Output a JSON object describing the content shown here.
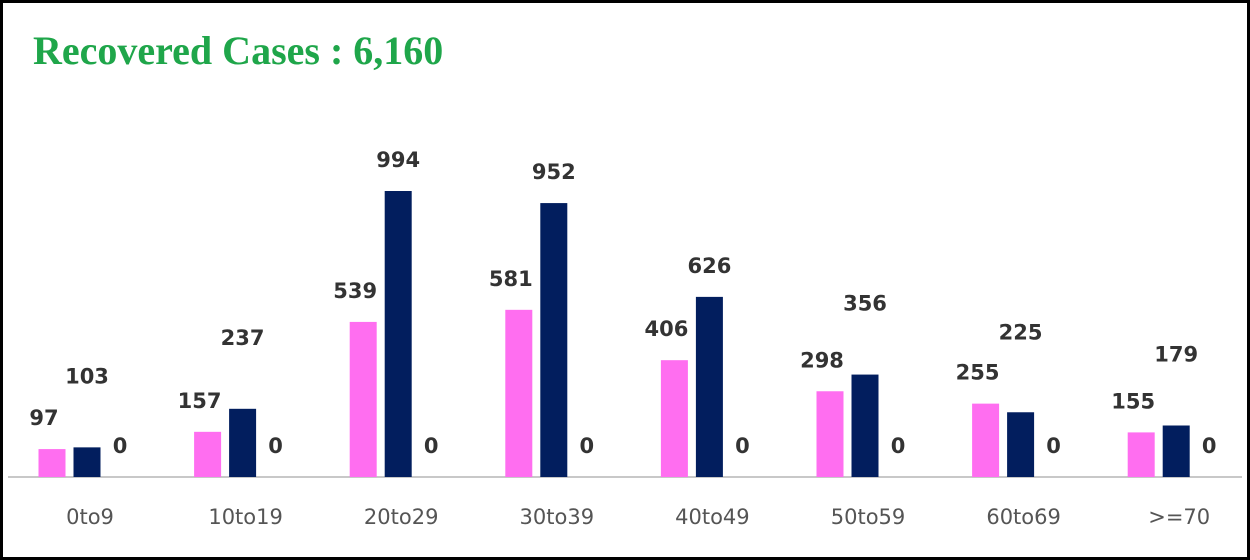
{
  "chart_data": {
    "type": "bar",
    "title": "Recovered Cases : 6,160",
    "categories": [
      "0to9",
      "10to19",
      "20to29",
      "30to39",
      "40to49",
      "50to59",
      "60to69",
      ">=70"
    ],
    "series": [
      {
        "color": "#ff6ef0",
        "values": [
          97,
          157,
          539,
          581,
          406,
          298,
          255,
          155
        ]
      },
      {
        "color": "#021e5e",
        "values": [
          103,
          237,
          994,
          952,
          626,
          356,
          225,
          179
        ]
      },
      {
        "color": "#7f7f7f",
        "values": [
          0,
          0,
          0,
          0,
          0,
          0,
          0,
          0
        ]
      }
    ]
  }
}
